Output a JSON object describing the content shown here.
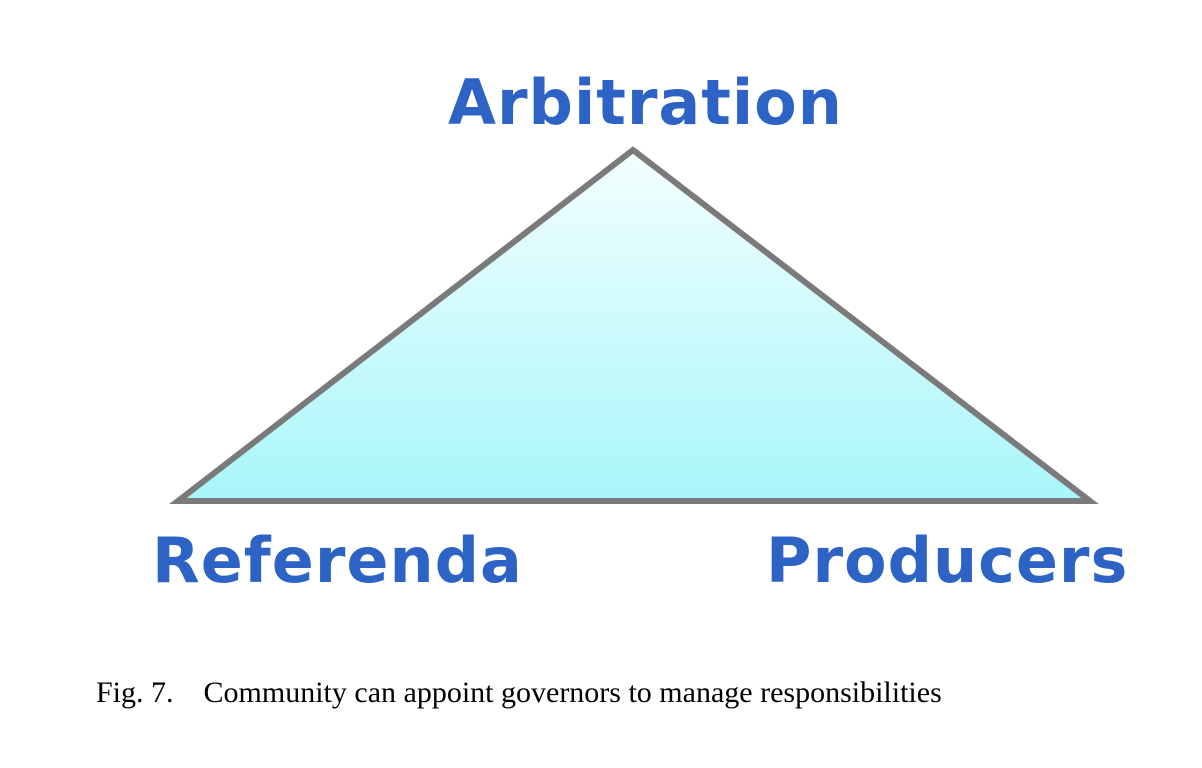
{
  "diagram": {
    "shape": "triangle",
    "fill_gradient": [
      "#f4ffff",
      "#a8f6fa"
    ],
    "stroke_color": "#7a7a7a",
    "label_color": "#2e63c6",
    "labels": {
      "top": "Arbitration",
      "left": "Referenda",
      "right": "Producers"
    }
  },
  "caption": {
    "number": "Fig. 7.",
    "text": "Community can appoint governors to manage responsibilities"
  }
}
